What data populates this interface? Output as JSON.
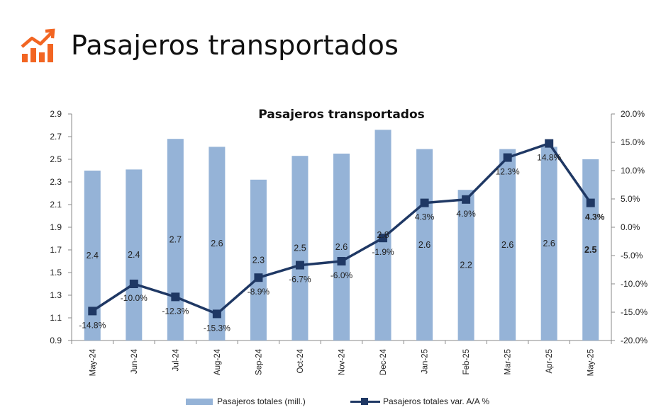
{
  "header": {
    "title": "Pasajeros transportados",
    "icon": "growth-chart-icon",
    "icon_color": "#F26522"
  },
  "chart_data": {
    "type": "bar+line",
    "title": "Pasajeros transportados",
    "categories": [
      "May-24",
      "Jun-24",
      "Jul-24",
      "Aug-24",
      "Sep-24",
      "Oct-24",
      "Nov-24",
      "Dec-24",
      "Jan-25",
      "Feb-25",
      "Mar-25",
      "Apr-25",
      "May-25"
    ],
    "left_axis": {
      "min": 0.9,
      "max": 2.9,
      "ticks": [
        "0.9",
        "1.1",
        "1.3",
        "1.5",
        "1.7",
        "1.9",
        "2.1",
        "2.3",
        "2.5",
        "2.7",
        "2.9"
      ]
    },
    "right_axis": {
      "min": -20,
      "max": 20,
      "ticks": [
        "-20.0%",
        "-15.0%",
        "-10.0%",
        "-5.0%",
        "0.0%",
        "5.0%",
        "10.0%",
        "15.0%",
        "20.0%"
      ]
    },
    "series": [
      {
        "name": "Pasajeros totales (mill.)",
        "type": "bar",
        "axis": "left",
        "color": "#95B3D7",
        "values": [
          2.4,
          2.41,
          2.68,
          2.61,
          2.32,
          2.53,
          2.55,
          2.76,
          2.59,
          2.23,
          2.59,
          2.61,
          2.5
        ],
        "labels": [
          "2.4",
          "2.4",
          "2.7",
          "2.6",
          "2.3",
          "2.5",
          "2.6",
          "2.8",
          "2.6",
          "2.2",
          "2.6",
          "2.6",
          "2.5"
        ]
      },
      {
        "name": "Pasajeros totales var. A/A %",
        "type": "line",
        "axis": "right",
        "color": "#1F3864",
        "values": [
          -14.8,
          -10.0,
          -12.3,
          -15.3,
          -8.9,
          -6.7,
          -6.0,
          -1.9,
          4.3,
          4.9,
          12.3,
          14.8,
          4.3
        ],
        "labels": [
          "-14.8%",
          "-10.0%",
          "-12.3%",
          "-15.3%",
          "-8.9%",
          "-6.7%",
          "-6.0%",
          "-1.9%",
          "4.3%",
          "4.9%",
          "12.3%",
          "14.8%",
          "4.3%"
        ]
      }
    ],
    "grid": false,
    "legend_position": "bottom"
  }
}
